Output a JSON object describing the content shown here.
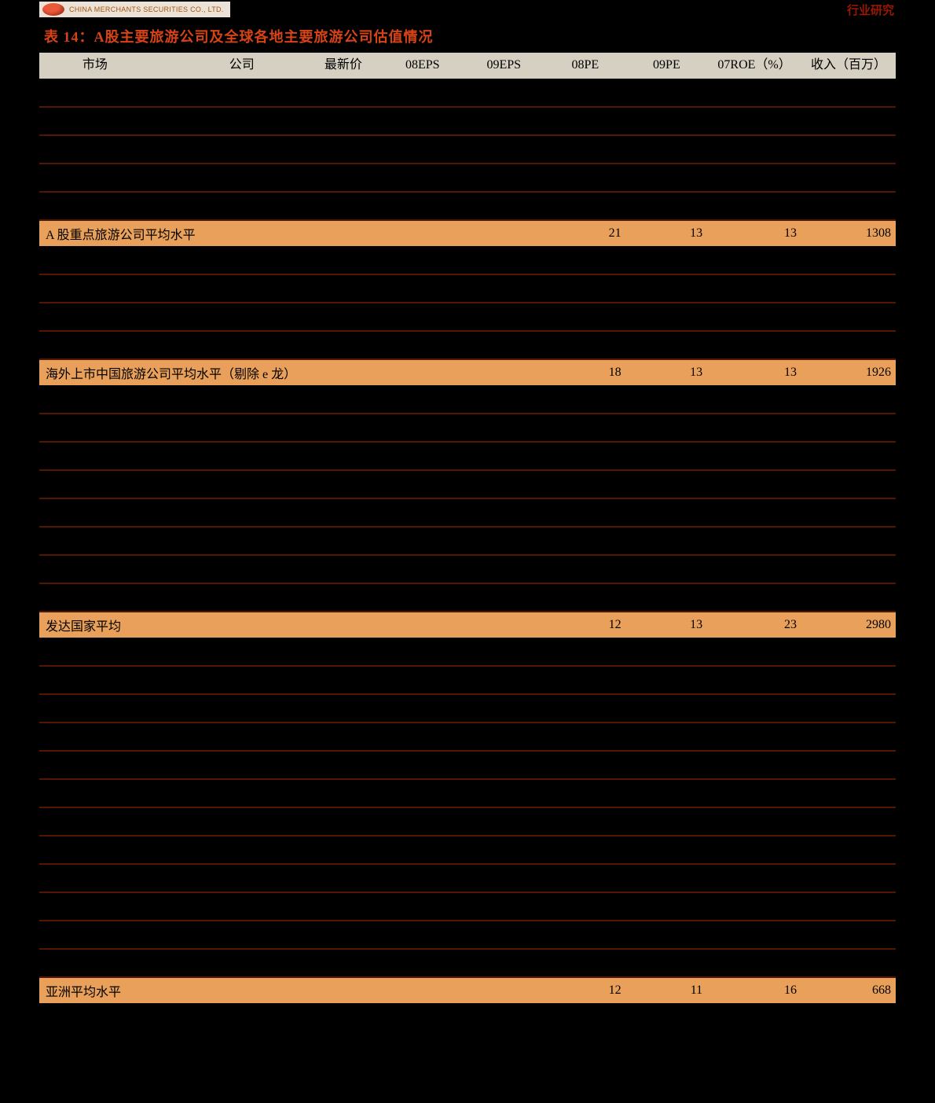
{
  "header": {
    "logo_text": "CHINA MERCHANTS SECURITIES CO., LTD.",
    "right_text": "行业研究"
  },
  "title": "表 14：A股主要旅游公司及全球各地主要旅游公司估值情况",
  "columns": [
    "市场",
    "公司",
    "最新价",
    "08EPS",
    "09EPS",
    "08PE",
    "09PE",
    "07ROE（%）",
    "收入（百万）"
  ],
  "sections": [
    {
      "data_rows": [
        [
          "",
          "",
          "",
          "",
          "",
          "",
          "",
          "",
          ""
        ],
        [
          "",
          "",
          "",
          "",
          "",
          "",
          "",
          "",
          ""
        ],
        [
          "",
          "",
          "",
          "",
          "",
          "",
          "",
          "",
          ""
        ],
        [
          "",
          "",
          "",
          "",
          "",
          "",
          "",
          "",
          ""
        ],
        [
          "",
          "",
          "",
          "",
          "",
          "",
          "",
          "",
          ""
        ]
      ],
      "summary": {
        "label": "A 股重点旅游公司平均水平",
        "values": [
          "",
          "",
          "",
          "21",
          "13",
          "13",
          "1308"
        ]
      }
    },
    {
      "data_rows": [
        [
          "",
          "",
          "",
          "",
          "",
          "",
          "",
          "",
          ""
        ],
        [
          "",
          "",
          "",
          "",
          "",
          "",
          "",
          "",
          ""
        ],
        [
          "",
          "",
          "",
          "",
          "",
          "",
          "",
          "",
          ""
        ],
        [
          "",
          "",
          "",
          "",
          "",
          "",
          "",
          "",
          ""
        ]
      ],
      "summary": {
        "label": "海外上市中国旅游公司平均水平（剔除 e 龙）",
        "values": [
          "",
          "",
          "",
          "18",
          "13",
          "13",
          "1926"
        ]
      }
    },
    {
      "data_rows": [
        [
          "",
          "",
          "",
          "",
          "",
          "",
          "",
          "",
          ""
        ],
        [
          "",
          "",
          "",
          "",
          "",
          "",
          "",
          "",
          ""
        ],
        [
          "",
          "",
          "",
          "",
          "",
          "",
          "",
          "",
          ""
        ],
        [
          "",
          "",
          "",
          "",
          "",
          "",
          "",
          "",
          ""
        ],
        [
          "",
          "",
          "",
          "",
          "",
          "",
          "",
          "",
          ""
        ],
        [
          "",
          "",
          "",
          "",
          "",
          "",
          "",
          "",
          ""
        ],
        [
          "",
          "",
          "",
          "",
          "",
          "",
          "",
          "",
          ""
        ],
        [
          "",
          "",
          "",
          "",
          "",
          "",
          "",
          "",
          ""
        ]
      ],
      "summary": {
        "label": "发达国家平均",
        "values": [
          "",
          "",
          "",
          "12",
          "13",
          "23",
          "2980"
        ]
      }
    },
    {
      "data_rows": [
        [
          "",
          "",
          "",
          "",
          "",
          "",
          "",
          "",
          ""
        ],
        [
          "",
          "",
          "",
          "",
          "",
          "",
          "",
          "",
          ""
        ],
        [
          "",
          "",
          "",
          "",
          "",
          "",
          "",
          "",
          ""
        ],
        [
          "",
          "",
          "",
          "",
          "",
          "",
          "",
          "",
          ""
        ],
        [
          "",
          "",
          "",
          "",
          "",
          "",
          "",
          "",
          ""
        ],
        [
          "",
          "",
          "",
          "",
          "",
          "",
          "",
          "",
          ""
        ],
        [
          "",
          "",
          "",
          "",
          "",
          "",
          "",
          "",
          ""
        ],
        [
          "",
          "",
          "",
          "",
          "",
          "",
          "",
          "",
          ""
        ],
        [
          "",
          "",
          "",
          "",
          "",
          "",
          "",
          "",
          ""
        ],
        [
          "",
          "",
          "",
          "",
          "",
          "",
          "",
          "",
          ""
        ],
        [
          "",
          "",
          "",
          "",
          "",
          "",
          "",
          "",
          ""
        ],
        [
          "",
          "",
          "",
          "",
          "",
          "",
          "",
          "",
          ""
        ]
      ],
      "summary": {
        "label": "亚洲平均水平",
        "values": [
          "",
          "",
          "",
          "12",
          "11",
          "16",
          "668"
        ]
      }
    }
  ],
  "styling": {
    "background_color": "#000000",
    "title_color": "#d84315",
    "header_bg": "#d6d0c2",
    "summary_bg": "#e8a05a",
    "row_border_color": "#531600",
    "logo_bg": "#ebe3d7",
    "header_right_color": "#991800",
    "title_fontsize": 18,
    "cell_fontsize": 16
  }
}
